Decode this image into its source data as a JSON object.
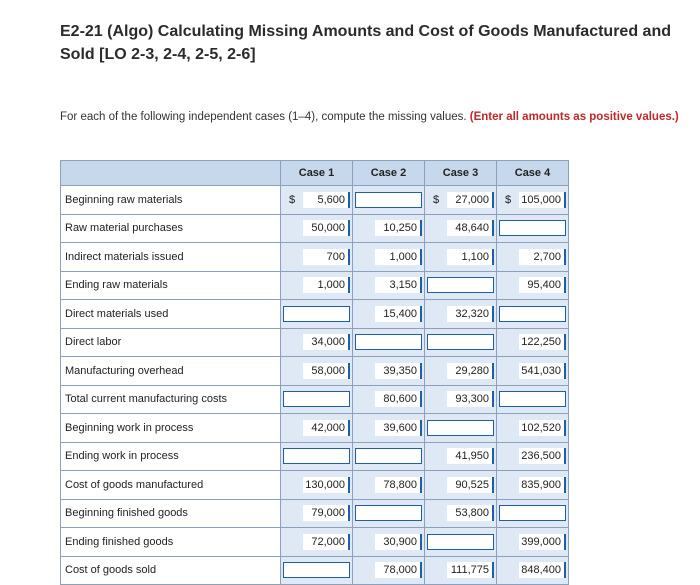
{
  "title": "E2-21 (Algo) Calculating Missing Amounts and Cost of Goods Manufactured and Sold [LO 2-3, 2-4, 2-5, 2-6]",
  "instructions": {
    "text": "For each of the following independent cases (1–4), compute the missing values.",
    "highlight": "(Enter all amounts as positive values.)"
  },
  "table": {
    "headers": [
      "Case 1",
      "Case 2",
      "Case 3",
      "Case 4"
    ],
    "rows": [
      {
        "label": "Beginning raw materials",
        "cells": [
          {
            "cur": "$",
            "value": "5,600"
          },
          {
            "cur": "",
            "value": "",
            "input": true
          },
          {
            "cur": "$",
            "value": "27,000"
          },
          {
            "cur": "$",
            "value": "105,000"
          }
        ]
      },
      {
        "label": "Raw material purchases",
        "cells": [
          {
            "value": "50,000"
          },
          {
            "value": "10,250"
          },
          {
            "value": "48,640"
          },
          {
            "value": "",
            "input": true
          }
        ]
      },
      {
        "label": "Indirect materials issued",
        "cells": [
          {
            "value": "700"
          },
          {
            "value": "1,000"
          },
          {
            "value": "1,100"
          },
          {
            "value": "2,700"
          }
        ]
      },
      {
        "label": "Ending raw materials",
        "cells": [
          {
            "value": "1,000"
          },
          {
            "value": "3,150"
          },
          {
            "value": "",
            "input": true
          },
          {
            "value": "95,400"
          }
        ]
      },
      {
        "label": "Direct materials used",
        "cells": [
          {
            "value": "",
            "input": true
          },
          {
            "value": "15,400"
          },
          {
            "value": "32,320"
          },
          {
            "value": "",
            "input": true
          }
        ]
      },
      {
        "label": "Direct labor",
        "cells": [
          {
            "value": "34,000"
          },
          {
            "value": "",
            "input": true
          },
          {
            "value": "",
            "input": true
          },
          {
            "value": "122,250"
          }
        ]
      },
      {
        "label": "Manufacturing overhead",
        "cells": [
          {
            "value": "58,000"
          },
          {
            "value": "39,350"
          },
          {
            "value": "29,280"
          },
          {
            "value": "541,030"
          }
        ]
      },
      {
        "label": "Total current manufacturing costs",
        "cells": [
          {
            "value": "",
            "input": true
          },
          {
            "value": "80,600"
          },
          {
            "value": "93,300"
          },
          {
            "value": "",
            "input": true
          }
        ]
      },
      {
        "label": "Beginning work in process",
        "cells": [
          {
            "value": "42,000"
          },
          {
            "value": "39,600"
          },
          {
            "value": "",
            "input": true
          },
          {
            "value": "102,520"
          }
        ]
      },
      {
        "label": "Ending work in process",
        "cells": [
          {
            "value": "",
            "input": true
          },
          {
            "value": "",
            "input": true
          },
          {
            "value": "41,950"
          },
          {
            "value": "236,500"
          }
        ]
      },
      {
        "label": "Cost of goods manufactured",
        "cells": [
          {
            "value": "130,000"
          },
          {
            "value": "78,800"
          },
          {
            "value": "90,525"
          },
          {
            "value": "835,900"
          }
        ]
      },
      {
        "label": "Beginning finished goods",
        "cells": [
          {
            "value": "79,000"
          },
          {
            "value": "",
            "input": true
          },
          {
            "value": "53,800"
          },
          {
            "value": "",
            "input": true
          }
        ]
      },
      {
        "label": "Ending finished goods",
        "cells": [
          {
            "value": "72,000"
          },
          {
            "value": "30,900"
          },
          {
            "value": "",
            "input": true
          },
          {
            "value": "399,000"
          }
        ]
      },
      {
        "label": "Cost of goods sold",
        "cells": [
          {
            "value": "",
            "input": true
          },
          {
            "value": "78,000"
          },
          {
            "value": "111,775"
          },
          {
            "value": "848,400"
          }
        ]
      }
    ]
  }
}
